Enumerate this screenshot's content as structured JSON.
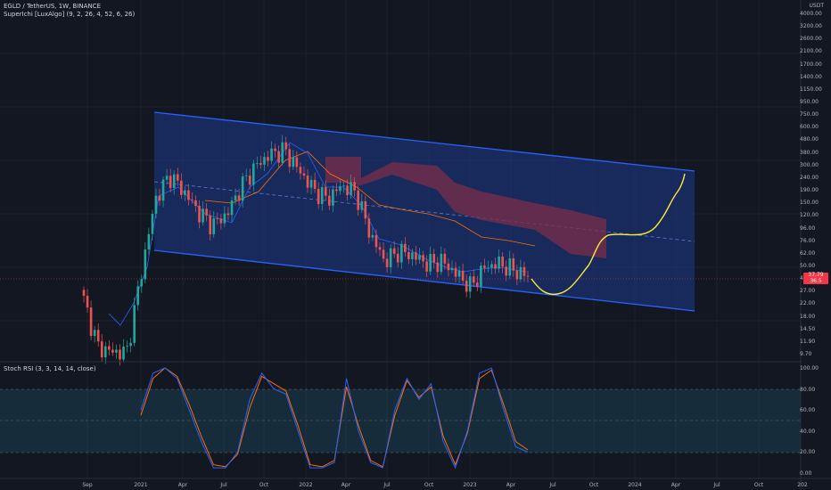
{
  "header": {
    "symbol_line": "EGLD / TetherUS, 1W, BINANCE",
    "indicator_line": "SuperIchi [LuxAlgo] (9, 2, 26, 4, 52, 6, 26)",
    "currency": "USDT"
  },
  "price_axis": {
    "labels": [
      "4000.00",
      "3200.00",
      "2600.00",
      "2100.00",
      "1700.00",
      "1400.00",
      "1150.00",
      "950.00",
      "750.00",
      "600.00",
      "480.00",
      "380.00",
      "300.00",
      "240.00",
      "190.00",
      "150.00",
      "120.00",
      "96.00",
      "76.00",
      "62.00",
      "50.00",
      "40.00",
      "27.00",
      "22.00",
      "18.00",
      "14.50",
      "11.90",
      "9.70"
    ],
    "last_price": "37.79",
    "last_price_sub": "36.5"
  },
  "rsi_panel": {
    "label": "Stoch RSI (3, 3, 14, 14, close)",
    "axis_labels": [
      "100.00",
      "80.00",
      "60.00",
      "40.00",
      "20.00",
      "0.00"
    ]
  },
  "time_axis": {
    "labels": [
      "Sep",
      "2021",
      "Apr",
      "Jul",
      "Oct",
      "2022",
      "Apr",
      "Jul",
      "Oct",
      "2023",
      "Apr",
      "Jul",
      "Oct",
      "2024",
      "Apr",
      "Jul",
      "Oct",
      "202"
    ]
  },
  "colors": {
    "background": "#131722",
    "up": "#26a69a",
    "down": "#ef5350",
    "channel_line": "#2962ff",
    "channel_fill": "#1e3a8a",
    "projection": "#ffeb3b",
    "k_line": "#2962ff",
    "d_line": "#ff6d00",
    "cloud": "#7b2d4a"
  },
  "chart_data": {
    "type": "candlestick",
    "description_source": "visual estimate",
    "x": [
      "2020-09",
      "2020-10",
      "2020-11",
      "2020-12",
      "2021-01",
      "2021-02",
      "2021-03",
      "2021-04",
      "2021-05",
      "2021-06",
      "2021-07",
      "2021-08",
      "2021-09",
      "2021-10",
      "2021-11",
      "2021-12",
      "2022-01",
      "2022-02",
      "2022-03",
      "2022-04",
      "2022-05",
      "2022-06",
      "2022-07",
      "2022-08",
      "2022-09",
      "2022-10",
      "2022-11",
      "2022-12",
      "2023-01",
      "2023-02",
      "2023-03",
      "2023-04"
    ],
    "close": [
      25,
      11,
      10,
      10,
      40,
      150,
      230,
      170,
      120,
      95,
      115,
      190,
      270,
      330,
      360,
      250,
      180,
      150,
      190,
      170,
      80,
      50,
      60,
      55,
      48,
      50,
      40,
      32,
      45,
      48,
      43,
      38
    ],
    "projection": [
      38,
      30,
      28,
      29,
      40,
      62,
      80,
      90,
      95,
      110,
      140,
      190,
      240
    ],
    "stoch_rsi_k": [
      60,
      95,
      100,
      90,
      60,
      30,
      5,
      5,
      20,
      70,
      95,
      80,
      75,
      40,
      5,
      5,
      10,
      90,
      40,
      10,
      5,
      60,
      90,
      70,
      85,
      30,
      5,
      40,
      95,
      100,
      60,
      25,
      20
    ],
    "stoch_rsi_d": [
      55,
      90,
      100,
      92,
      65,
      35,
      8,
      6,
      18,
      62,
      92,
      85,
      78,
      45,
      8,
      6,
      12,
      82,
      45,
      12,
      6,
      55,
      88,
      72,
      82,
      35,
      8,
      38,
      90,
      98,
      65,
      30,
      22
    ]
  }
}
